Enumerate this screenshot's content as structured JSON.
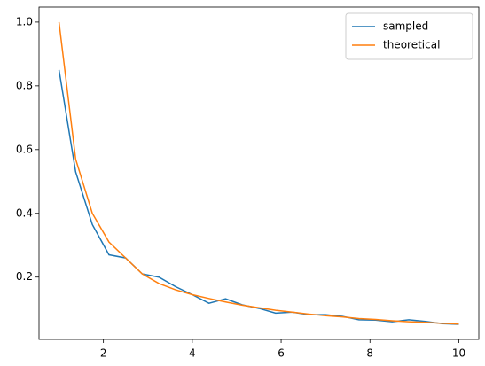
{
  "chart_data": {
    "type": "line",
    "x": [
      1,
      1.375,
      1.75,
      2.125,
      2.5,
      2.875,
      3.25,
      3.625,
      4,
      4.375,
      4.75,
      5.125,
      5.5,
      5.875,
      6.25,
      6.625,
      7,
      7.375,
      7.75,
      8.125,
      8.5,
      8.875,
      9.25,
      9.625,
      10
    ],
    "series": [
      {
        "name": "sampled",
        "color": "#1f77b4",
        "values": [
          0.85,
          0.53,
          0.365,
          0.27,
          0.26,
          0.21,
          0.2,
          0.17,
          0.145,
          0.118,
          0.132,
          0.113,
          0.102,
          0.087,
          0.09,
          0.082,
          0.082,
          0.077,
          0.066,
          0.065,
          0.06,
          0.066,
          0.061,
          0.054,
          0.052
        ]
      },
      {
        "name": "theoretical",
        "color": "#ff7f0e",
        "values": [
          1.0,
          0.57,
          0.4,
          0.31,
          0.26,
          0.21,
          0.18,
          0.16,
          0.145,
          0.133,
          0.122,
          0.112,
          0.104,
          0.096,
          0.09,
          0.084,
          0.079,
          0.075,
          0.07,
          0.067,
          0.063,
          0.06,
          0.058,
          0.055,
          0.053
        ]
      }
    ],
    "xlim": [
      0.55,
      10.45
    ],
    "ylim": [
      0.0046,
      1.047
    ],
    "xticks": [
      2,
      4,
      6,
      8,
      10
    ],
    "yticks": [
      0.2,
      0.4,
      0.6,
      0.8,
      {
        "value": 1.0,
        "label": "1.0"
      }
    ],
    "legend": "upper right"
  }
}
